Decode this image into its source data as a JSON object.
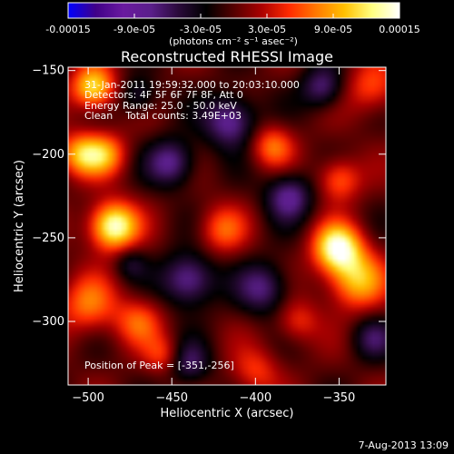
{
  "colorbar": {
    "tick_labels": [
      "-0.00015",
      "-9.0e-05",
      "-3.0e-05",
      "3.0e-05",
      "9.0e-05",
      "0.00015"
    ],
    "tick_values": [
      -0.00015,
      -9e-05,
      -3e-05,
      3e-05,
      9e-05,
      0.00015
    ],
    "range": [
      -0.00015,
      0.00015
    ],
    "unit_label": "(photons cm⁻² s⁻¹ asec⁻²)",
    "colors": [
      "#0000ff",
      "#400088",
      "#6a1aa0",
      "#5a1f8a",
      "#2a0a3a",
      "#000000",
      "#550000",
      "#aa0000",
      "#ff2a00",
      "#ff7a00",
      "#ffc000",
      "#ffff80",
      "#ffffff"
    ]
  },
  "annotations": {
    "time": "31-Jan-2011 19:59:32.000 to 20:03:10.000",
    "detectors": "Detectors: 4F 5F 6F 7F 8F, Att 0",
    "energy": "Energy Range: 25.0 - 50.0 keV",
    "clean": "Clean    Total counts: 3.49E+03",
    "peak": "Position of Peak = [-351,-256]"
  },
  "footer": {
    "timestamp": "7-Aug-2013 13:09"
  },
  "chart_data": {
    "type": "heatmap",
    "title": "Reconstructed RHESSI Image",
    "xlabel": "Heliocentric X (arcsec)",
    "ylabel": "Heliocentric Y (arcsec)",
    "xlim": [
      -512,
      -322
    ],
    "ylim": [
      -338,
      -148
    ],
    "xticks": [
      -500,
      -450,
      -400,
      -350
    ],
    "yticks": [
      -150,
      -200,
      -250,
      -300
    ],
    "value_range": [
      -0.00015,
      0.00015
    ],
    "peak": [
      -351,
      -256
    ],
    "sources": [
      {
        "x": -485,
        "y": -243,
        "peak": 0.00015,
        "sigma": 10
      },
      {
        "x": -351,
        "y": -256,
        "peak": 0.00014,
        "sigma": 10
      },
      {
        "x": -497,
        "y": -160,
        "peak": 0.00012,
        "sigma": 9
      },
      {
        "x": -505,
        "y": -200,
        "peak": 9e-05,
        "sigma": 9
      },
      {
        "x": -490,
        "y": -200,
        "peak": 8e-05,
        "sigma": 9
      },
      {
        "x": -500,
        "y": -290,
        "peak": 7e-05,
        "sigma": 12
      },
      {
        "x": -340,
        "y": -275,
        "peak": 0.0001,
        "sigma": 12
      },
      {
        "x": -350,
        "y": -215,
        "peak": 7e-05,
        "sigma": 9
      },
      {
        "x": -330,
        "y": -160,
        "peak": 6e-05,
        "sigma": 11
      },
      {
        "x": -390,
        "y": -195,
        "peak": 7e-05,
        "sigma": 9
      },
      {
        "x": -420,
        "y": -245,
        "peak": 6e-05,
        "sigma": 10
      },
      {
        "x": -470,
        "y": -300,
        "peak": 6e-05,
        "sigma": 10
      },
      {
        "x": -455,
        "y": -320,
        "peak": 5e-05,
        "sigma": 8
      },
      {
        "x": -400,
        "y": -330,
        "peak": 5e-05,
        "sigma": 10
      },
      {
        "x": -375,
        "y": -300,
        "peak": 5e-05,
        "sigma": 9
      },
      {
        "x": -440,
        "y": -275,
        "peak": -9e-05,
        "sigma": 11
      },
      {
        "x": -415,
        "y": -180,
        "peak": -9e-05,
        "sigma": 11
      },
      {
        "x": -450,
        "y": -205,
        "peak": -8e-05,
        "sigma": 10
      },
      {
        "x": -380,
        "y": -225,
        "peak": -8e-05,
        "sigma": 10
      },
      {
        "x": -395,
        "y": -280,
        "peak": -7e-05,
        "sigma": 11
      },
      {
        "x": -360,
        "y": -160,
        "peak": -7e-05,
        "sigma": 9
      },
      {
        "x": -470,
        "y": -165,
        "peak": -5e-05,
        "sigma": 8
      },
      {
        "x": -330,
        "y": -310,
        "peak": -5e-05,
        "sigma": 9
      },
      {
        "x": -440,
        "y": -325,
        "peak": -6e-05,
        "sigma": 9
      },
      {
        "x": -475,
        "y": -265,
        "peak": -4e-05,
        "sigma": 7
      }
    ]
  }
}
